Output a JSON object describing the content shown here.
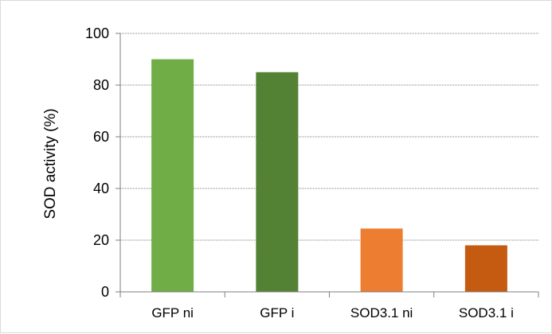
{
  "chart_data": {
    "type": "bar",
    "categories": [
      "GFP ni",
      "GFP i",
      "SOD3.1 ni",
      "SOD3.1 i"
    ],
    "values": [
      90,
      85,
      24.5,
      18
    ],
    "title": "",
    "xlabel": "",
    "ylabel": "SOD activity (%)",
    "ylim": [
      0,
      100
    ],
    "yticks": [
      0,
      20,
      40,
      60,
      80,
      100
    ],
    "grid": "horizontal dotted",
    "legend": "none",
    "colors": [
      "#70ad47",
      "#548235",
      "#ed7d31",
      "#c55a11"
    ],
    "gridline_color": "#7f7f7f",
    "axis_color": "#7f7f7f"
  }
}
